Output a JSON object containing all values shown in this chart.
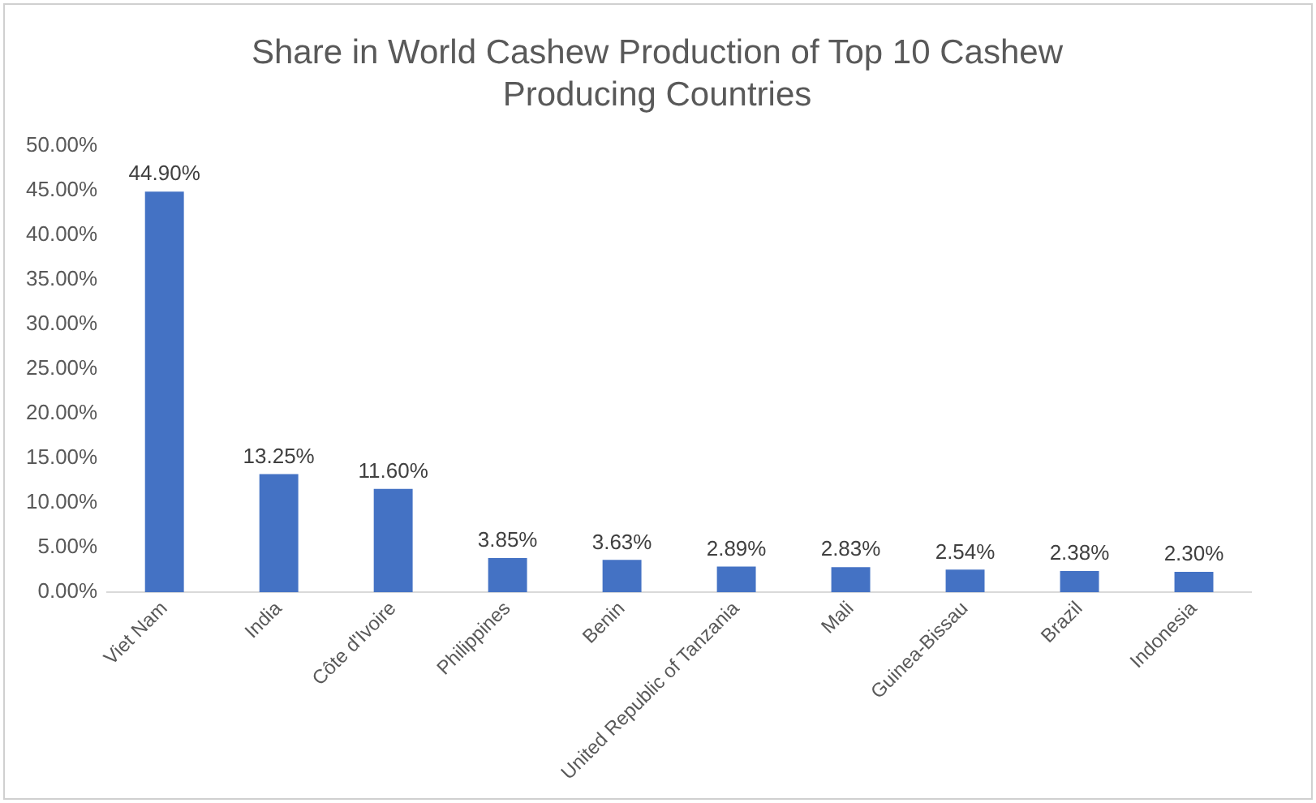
{
  "chart_data": {
    "type": "bar",
    "title": "Share in World Cashew Production of Top 10 Cashew Producing Countries",
    "categories": [
      "Viet Nam",
      "India",
      "Côte d'Ivoire",
      "Philippines",
      "Benin",
      "United Republic of Tanzania",
      "Mali",
      "Guinea-Bissau",
      "Brazil",
      "Indonesia"
    ],
    "values": [
      44.9,
      13.25,
      11.6,
      3.85,
      3.63,
      2.89,
      2.83,
      2.54,
      2.38,
      2.3
    ],
    "value_labels": [
      "44.90%",
      "13.25%",
      "11.60%",
      "3.85%",
      "3.63%",
      "2.89%",
      "2.83%",
      "2.54%",
      "2.38%",
      "2.30%"
    ],
    "color": "#4472c4",
    "ylim": [
      0,
      50
    ],
    "yticks": [
      {
        "value": 0,
        "label": "0.00%"
      },
      {
        "value": 5,
        "label": "5.00%"
      },
      {
        "value": 10,
        "label": "10.00%"
      },
      {
        "value": 15,
        "label": "15.00%"
      },
      {
        "value": 20,
        "label": "20.00%"
      },
      {
        "value": 25,
        "label": "25.00%"
      },
      {
        "value": 30,
        "label": "30.00%"
      },
      {
        "value": 35,
        "label": "35.00%"
      },
      {
        "value": 40,
        "label": "40.00%"
      },
      {
        "value": 45,
        "label": "45.00%"
      },
      {
        "value": 50,
        "label": "50.00%"
      }
    ],
    "grid": false,
    "legend": false
  }
}
